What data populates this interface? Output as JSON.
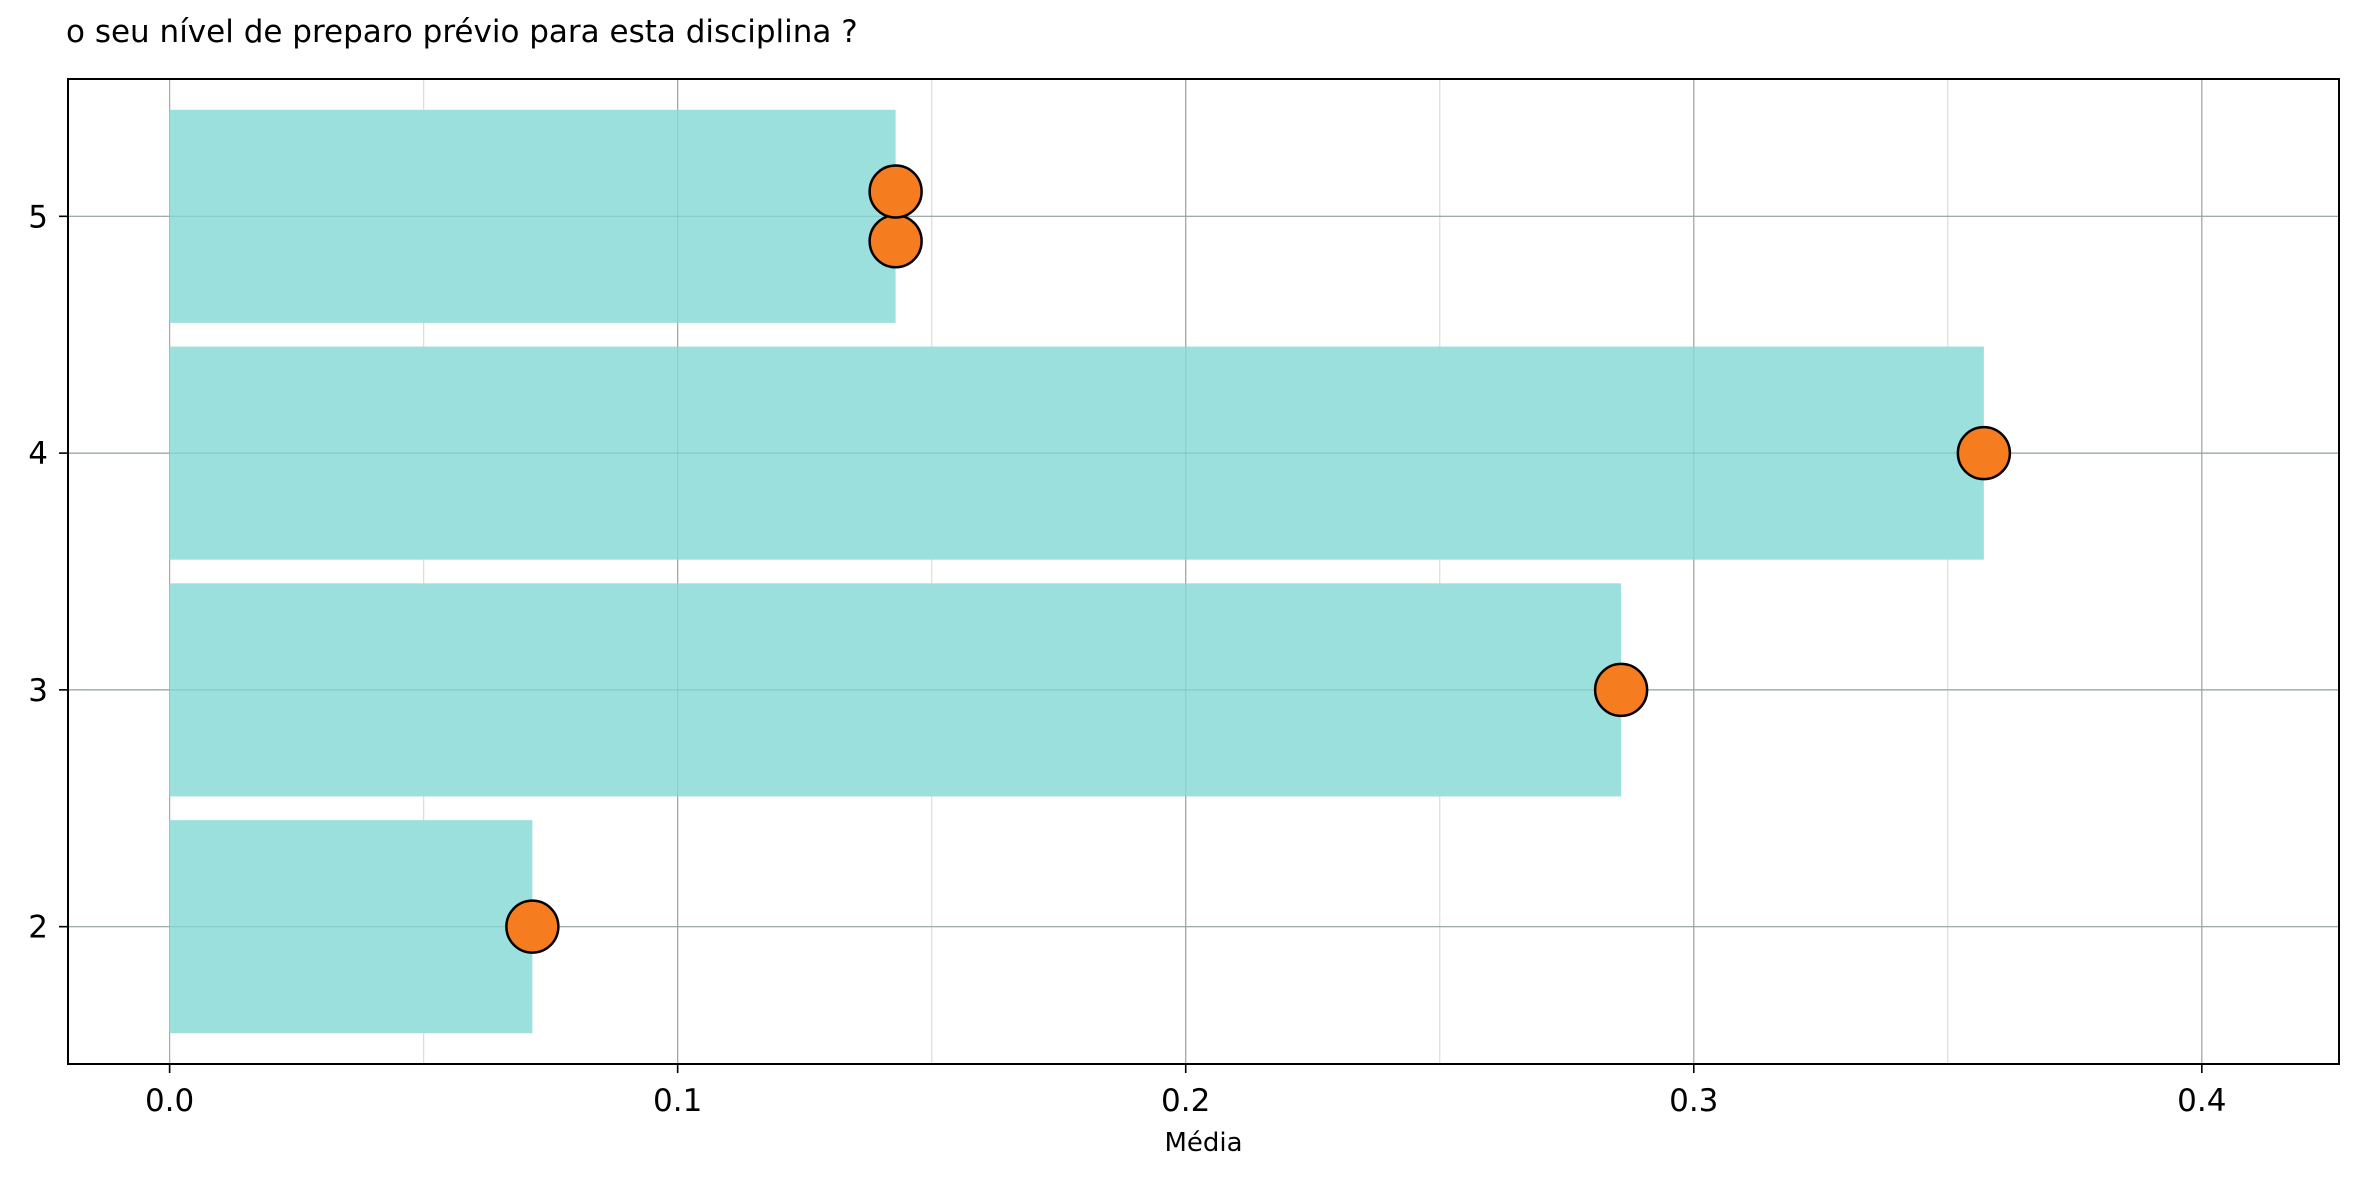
{
  "chart_data": {
    "type": "bar",
    "orientation": "horizontal",
    "title": "o seu nível de preparo prévio para esta disciplina ?",
    "xlabel": "Média",
    "ylabel": "",
    "xlim": [
      -0.02,
      0.427
    ],
    "ylim": [
      1.42,
      5.58
    ],
    "xticks": [
      0.0,
      0.1,
      0.2,
      0.3,
      0.4
    ],
    "xtick_labels": [
      "0.0",
      "0.1",
      "0.2",
      "0.3",
      "0.4"
    ],
    "minor_xticks": [
      0.05,
      0.15,
      0.25,
      0.35
    ],
    "categories": [
      "2",
      "3",
      "4",
      "5"
    ],
    "category_positions": [
      2,
      3,
      4,
      5
    ],
    "values": [
      0.0714,
      0.2857,
      0.3571,
      0.1429
    ],
    "markers": [
      {
        "x": 0.0714,
        "y": 2.0
      },
      {
        "x": 0.2857,
        "y": 3.0
      },
      {
        "x": 0.3571,
        "y": 4.0
      },
      {
        "x": 0.1429,
        "y": 4.895
      },
      {
        "x": 0.1429,
        "y": 5.105
      }
    ],
    "grid": true,
    "colors": {
      "bar": "#9be0dc",
      "marker": "#f57c1f",
      "marker_edge": "#000000",
      "grid": "#b0b0b0"
    }
  }
}
